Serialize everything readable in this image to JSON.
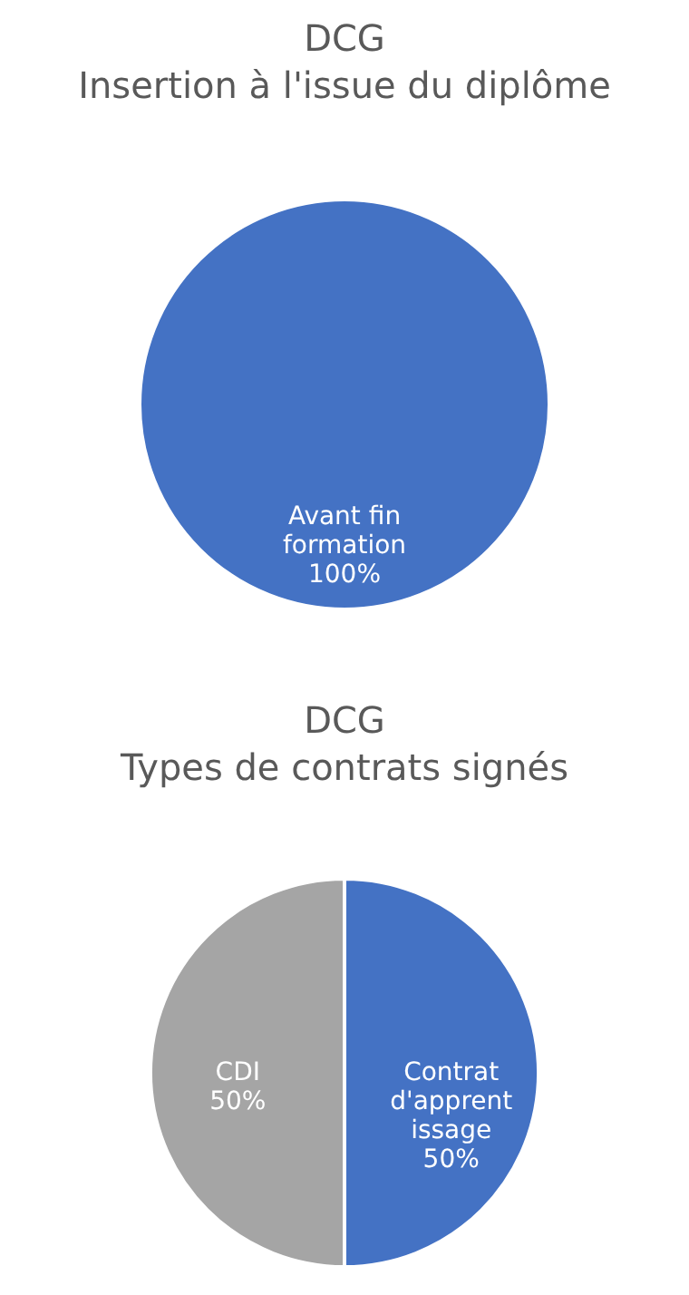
{
  "chart_data": [
    {
      "type": "pie",
      "title": "DCG",
      "subtitle": "Insertion à l'issue du diplôme",
      "categories": [
        "Avant fin formation"
      ],
      "values": [
        100
      ],
      "value_labels": [
        "100%"
      ],
      "colors": [
        "#4472c4"
      ],
      "data_labels": true,
      "legend": false
    },
    {
      "type": "pie",
      "title": "DCG",
      "subtitle": "Types de contrats signés",
      "categories": [
        "Contrat d'apprentissage",
        "CDI"
      ],
      "values": [
        50,
        50
      ],
      "value_labels": [
        "50%",
        "50%"
      ],
      "colors": [
        "#4472c4",
        "#a5a5a5"
      ],
      "data_labels": true,
      "legend": false
    }
  ]
}
